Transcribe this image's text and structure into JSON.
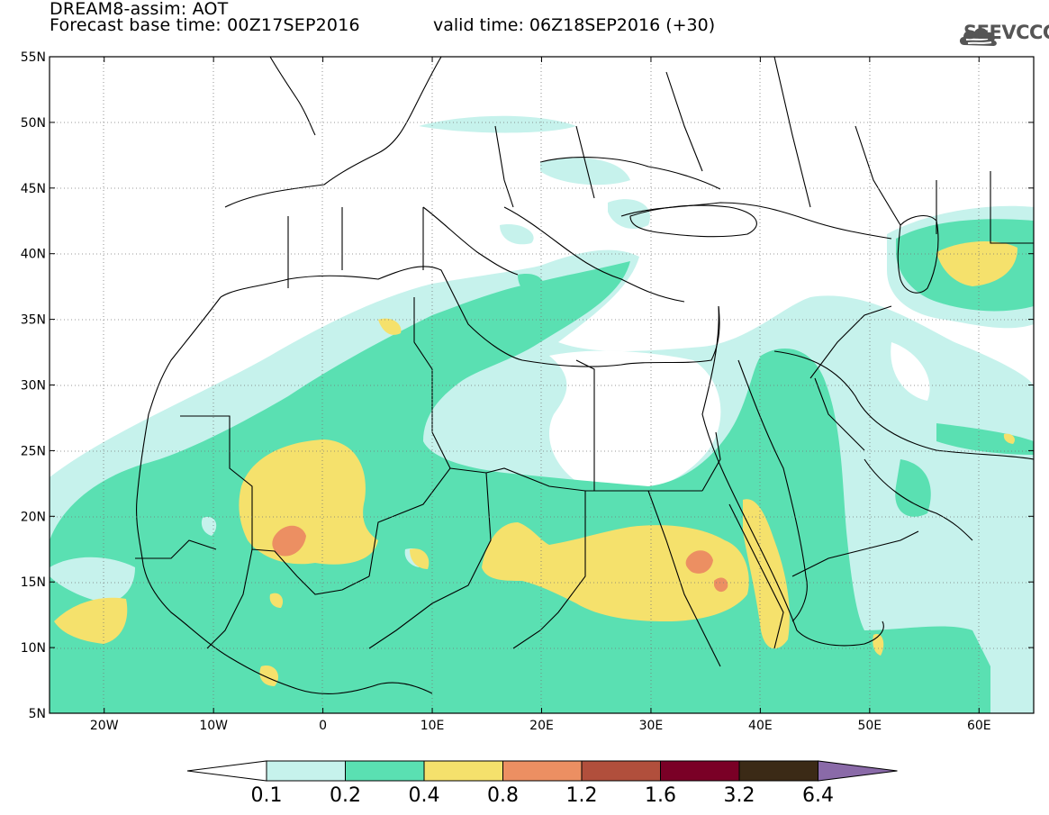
{
  "header": {
    "title": "DREAM8-assim: AOT",
    "base_time": "Forecast base time: 00Z17SEP2016",
    "valid_time": "valid time: 06Z18SEP2016 (+30)",
    "logo_text": "SEEVCCC"
  },
  "map": {
    "lon_range": [
      -25,
      65
    ],
    "lat_range": [
      5,
      55
    ],
    "lat_ticks": [
      "5N",
      "10N",
      "15N",
      "20N",
      "25N",
      "30N",
      "35N",
      "40N",
      "45N",
      "50N",
      "55N"
    ],
    "lon_ticks": [
      "20W",
      "10W",
      "0",
      "10E",
      "20E",
      "30E",
      "40E",
      "50E",
      "60E"
    ],
    "gridlines": true
  },
  "colorbar": {
    "levels": [
      "0.1",
      "0.2",
      "0.4",
      "0.8",
      "1.2",
      "1.6",
      "3.2",
      "6.4"
    ],
    "colors": [
      "#ffffff",
      "#c6f2ec",
      "#5ae0b2",
      "#f5e16c",
      "#ec8f62",
      "#b14f3c",
      "#7a0026",
      "#3b2a16",
      "#8a6aa8"
    ]
  },
  "colors": {
    "aot_0_1": "#c6f2ec",
    "aot_0_2": "#5ae0b2",
    "aot_0_4": "#f5e16c",
    "aot_0_8": "#ec8f62",
    "border": "#000000"
  }
}
